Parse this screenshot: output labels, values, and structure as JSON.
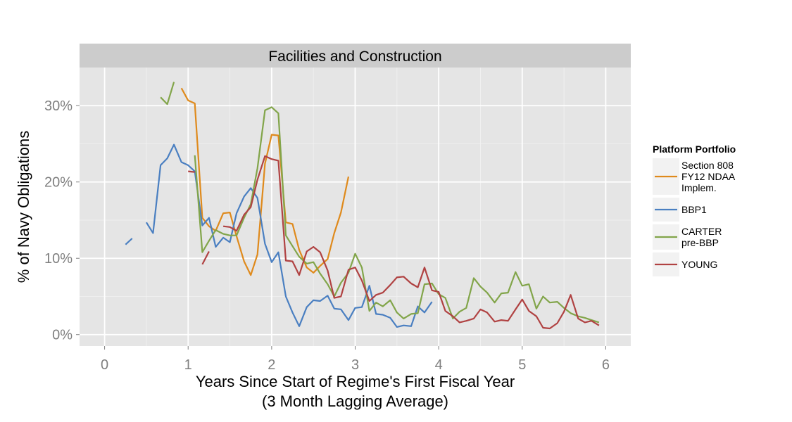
{
  "chart_data": {
    "type": "line",
    "title": "Facilities and Construction",
    "xlabel": "Years Since Start of Regime's First Fiscal Year",
    "xlabel_line2": "(3 Month Lagging Average)",
    "ylabel": "% of Navy Obligations",
    "xlim": [
      -0.3,
      6.3
    ],
    "ylim": [
      -1.5,
      35
    ],
    "x_ticks": [
      0,
      1,
      2,
      3,
      4,
      5,
      6
    ],
    "x_tick_labels": [
      "0",
      "1",
      "2",
      "3",
      "4",
      "5",
      "6"
    ],
    "y_ticks": [
      0,
      10,
      20,
      30
    ],
    "y_tick_labels": [
      "0%",
      "10%",
      "20%",
      "30%"
    ],
    "grid": true,
    "legend_position": "right",
    "legend_title": "Platform Portfolio",
    "background_color": "#e5e5e5",
    "strip_color": "#cccccc",
    "grid_color": "#ffffff",
    "series": [
      {
        "name": "Section 808 FY12 NDAA Implem.",
        "legend_lines": [
          "Section 808",
          "FY12 NDAA",
          "Implem."
        ],
        "color": "#df8a1c",
        "segments": [
          [
            [
              0.92,
              32.3
            ],
            [
              1.0,
              30.7
            ],
            [
              1.08,
              30.3
            ],
            [
              1.17,
              15.3
            ],
            [
              1.25,
              14.2
            ],
            [
              1.33,
              13.6
            ],
            [
              1.42,
              15.9
            ],
            [
              1.5,
              16.0
            ],
            [
              1.58,
              12.9
            ],
            [
              1.67,
              9.6
            ],
            [
              1.75,
              7.8
            ],
            [
              1.83,
              10.5
            ],
            [
              1.92,
              22.4
            ],
            [
              2.0,
              26.2
            ],
            [
              2.08,
              26.1
            ],
            [
              2.17,
              14.7
            ],
            [
              2.25,
              14.5
            ],
            [
              2.33,
              11.1
            ],
            [
              2.42,
              8.8
            ],
            [
              2.5,
              8.1
            ],
            [
              2.58,
              9.0
            ],
            [
              2.67,
              9.9
            ],
            [
              2.75,
              13.3
            ],
            [
              2.83,
              16.0
            ],
            [
              2.92,
              20.7
            ]
          ]
        ]
      },
      {
        "name": "BBP1",
        "legend_lines": [
          "BBP1"
        ],
        "color": "#4a7fc1",
        "segments": [
          [
            [
              0.25,
              11.8
            ],
            [
              0.33,
              12.6
            ]
          ],
          [
            [
              0.5,
              14.7
            ],
            [
              0.58,
              13.3
            ],
            [
              0.67,
              22.2
            ],
            [
              0.75,
              23.1
            ],
            [
              0.83,
              24.9
            ],
            [
              0.92,
              22.6
            ],
            [
              1.0,
              22.2
            ],
            [
              1.08,
              21.4
            ],
            [
              1.17,
              14.3
            ],
            [
              1.25,
              15.3
            ],
            [
              1.33,
              11.5
            ],
            [
              1.42,
              12.7
            ],
            [
              1.5,
              12.1
            ],
            [
              1.58,
              15.9
            ],
            [
              1.67,
              18.1
            ],
            [
              1.75,
              19.2
            ],
            [
              1.83,
              17.9
            ],
            [
              1.92,
              11.9
            ],
            [
              2.0,
              9.5
            ],
            [
              2.08,
              10.8
            ],
            [
              2.17,
              5.0
            ],
            [
              2.25,
              2.9
            ],
            [
              2.33,
              1.1
            ],
            [
              2.42,
              3.6
            ],
            [
              2.5,
              4.5
            ],
            [
              2.58,
              4.4
            ],
            [
              2.67,
              5.1
            ],
            [
              2.75,
              3.4
            ],
            [
              2.83,
              3.3
            ],
            [
              2.92,
              1.9
            ],
            [
              3.0,
              3.5
            ],
            [
              3.08,
              3.6
            ],
            [
              3.17,
              6.4
            ],
            [
              3.25,
              2.7
            ],
            [
              3.33,
              2.6
            ],
            [
              3.42,
              2.2
            ],
            [
              3.5,
              1.0
            ],
            [
              3.58,
              1.2
            ],
            [
              3.67,
              1.1
            ],
            [
              3.75,
              3.7
            ],
            [
              3.83,
              2.9
            ],
            [
              3.92,
              4.3
            ]
          ]
        ]
      },
      {
        "name": "CARTER pre-BBP",
        "legend_lines": [
          "CARTER",
          "pre-BBP"
        ],
        "color": "#82a54a",
        "segments": [
          [
            [
              0.67,
              31.1
            ],
            [
              0.75,
              30.2
            ],
            [
              0.83,
              33.1
            ]
          ],
          [
            [
              1.08,
              23.5
            ],
            [
              1.17,
              10.8
            ],
            [
              1.25,
              12.3
            ],
            [
              1.33,
              13.7
            ],
            [
              1.42,
              13.2
            ],
            [
              1.5,
              13.0
            ],
            [
              1.58,
              13.0
            ],
            [
              1.67,
              15.3
            ],
            [
              1.75,
              17.1
            ],
            [
              1.83,
              21.8
            ],
            [
              1.92,
              29.4
            ],
            [
              2.0,
              29.8
            ],
            [
              2.08,
              29.0
            ],
            [
              2.17,
              13.0
            ],
            [
              2.25,
              11.6
            ],
            [
              2.33,
              10.2
            ],
            [
              2.42,
              9.3
            ],
            [
              2.5,
              9.5
            ],
            [
              2.58,
              8.0
            ],
            [
              2.67,
              6.6
            ],
            [
              2.75,
              5.0
            ],
            [
              2.83,
              6.8
            ],
            [
              2.92,
              8.1
            ],
            [
              3.0,
              10.6
            ],
            [
              3.08,
              8.8
            ],
            [
              3.17,
              3.1
            ],
            [
              3.25,
              4.2
            ],
            [
              3.33,
              3.7
            ],
            [
              3.42,
              4.5
            ],
            [
              3.5,
              2.9
            ],
            [
              3.58,
              2.1
            ],
            [
              3.67,
              2.7
            ],
            [
              3.75,
              2.8
            ],
            [
              3.83,
              6.6
            ],
            [
              3.92,
              6.7
            ],
            [
              4.0,
              5.3
            ],
            [
              4.08,
              4.8
            ],
            [
              4.17,
              2.1
            ],
            [
              4.25,
              3.0
            ],
            [
              4.33,
              3.5
            ],
            [
              4.42,
              7.4
            ],
            [
              4.5,
              6.3
            ],
            [
              4.58,
              5.5
            ],
            [
              4.67,
              4.2
            ],
            [
              4.75,
              5.4
            ],
            [
              4.83,
              5.5
            ],
            [
              4.92,
              8.2
            ],
            [
              5.0,
              6.4
            ],
            [
              5.08,
              6.6
            ],
            [
              5.17,
              3.4
            ],
            [
              5.25,
              5.0
            ],
            [
              5.33,
              4.2
            ],
            [
              5.42,
              4.3
            ],
            [
              5.5,
              3.5
            ],
            [
              5.58,
              2.8
            ],
            [
              5.67,
              2.4
            ],
            [
              5.75,
              2.2
            ],
            [
              5.83,
              1.9
            ],
            [
              5.92,
              1.6
            ]
          ]
        ]
      },
      {
        "name": "YOUNG",
        "legend_lines": [
          "YOUNG"
        ],
        "color": "#b04242",
        "segments": [
          [
            [
              1.0,
              21.4
            ],
            [
              1.08,
              21.3
            ]
          ],
          [
            [
              1.17,
              9.2
            ],
            [
              1.25,
              10.9
            ]
          ],
          [
            [
              1.42,
              14.2
            ],
            [
              1.5,
              14.1
            ],
            [
              1.58,
              13.6
            ],
            [
              1.67,
              15.7
            ],
            [
              1.75,
              16.7
            ],
            [
              1.83,
              20.3
            ],
            [
              1.92,
              23.4
            ],
            [
              2.0,
              23.0
            ],
            [
              2.08,
              22.8
            ],
            [
              2.17,
              9.7
            ],
            [
              2.25,
              9.6
            ],
            [
              2.33,
              7.8
            ],
            [
              2.42,
              10.9
            ],
            [
              2.5,
              11.5
            ],
            [
              2.58,
              10.8
            ],
            [
              2.67,
              8.4
            ],
            [
              2.75,
              4.8
            ],
            [
              2.83,
              5.0
            ],
            [
              2.92,
              8.5
            ],
            [
              3.0,
              8.8
            ],
            [
              3.08,
              7.1
            ],
            [
              3.17,
              4.4
            ],
            [
              3.25,
              5.2
            ],
            [
              3.33,
              5.5
            ],
            [
              3.42,
              6.5
            ],
            [
              3.5,
              7.5
            ],
            [
              3.58,
              7.6
            ],
            [
              3.67,
              6.7
            ],
            [
              3.75,
              6.2
            ],
            [
              3.83,
              8.8
            ],
            [
              3.92,
              5.8
            ],
            [
              4.0,
              5.6
            ],
            [
              4.08,
              3.1
            ],
            [
              4.17,
              2.4
            ],
            [
              4.25,
              1.6
            ],
            [
              4.33,
              1.8
            ],
            [
              4.42,
              2.1
            ],
            [
              4.5,
              3.3
            ],
            [
              4.58,
              2.9
            ],
            [
              4.67,
              1.7
            ],
            [
              4.75,
              1.9
            ],
            [
              4.83,
              1.8
            ],
            [
              4.92,
              3.3
            ],
            [
              5.0,
              4.6
            ],
            [
              5.08,
              3.1
            ],
            [
              5.17,
              2.4
            ],
            [
              5.25,
              0.9
            ],
            [
              5.33,
              0.8
            ],
            [
              5.42,
              1.5
            ],
            [
              5.5,
              3.0
            ],
            [
              5.58,
              5.2
            ],
            [
              5.67,
              2.1
            ],
            [
              5.75,
              1.6
            ],
            [
              5.83,
              1.8
            ],
            [
              5.92,
              1.2
            ]
          ]
        ]
      }
    ]
  }
}
